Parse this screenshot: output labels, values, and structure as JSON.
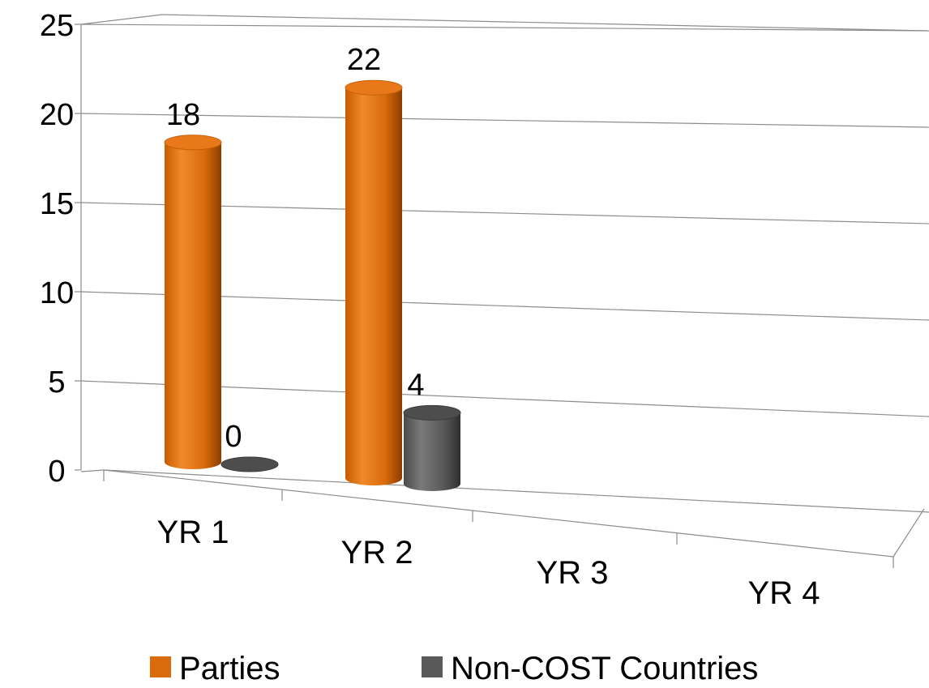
{
  "chart_data": {
    "type": "bar",
    "style": "3d-cylinder",
    "categories": [
      "YR 1",
      "YR 2",
      "YR 3",
      "YR 4"
    ],
    "series": [
      {
        "name": "Parties",
        "values": [
          18,
          22,
          null,
          null
        ],
        "color": "#D96B0B"
      },
      {
        "name": "Non-COST Countries",
        "values": [
          0,
          4,
          null,
          null
        ],
        "color": "#595959"
      }
    ],
    "data_labels": [
      [
        "18",
        "22",
        "",
        ""
      ],
      [
        "0",
        "4",
        "",
        ""
      ]
    ],
    "ylim": [
      0,
      25
    ],
    "yticks": [
      "0",
      "5",
      "10",
      "15",
      "20",
      "25"
    ],
    "grid": true,
    "legend": "bottom",
    "title": "",
    "xlabel": "",
    "ylabel": ""
  }
}
